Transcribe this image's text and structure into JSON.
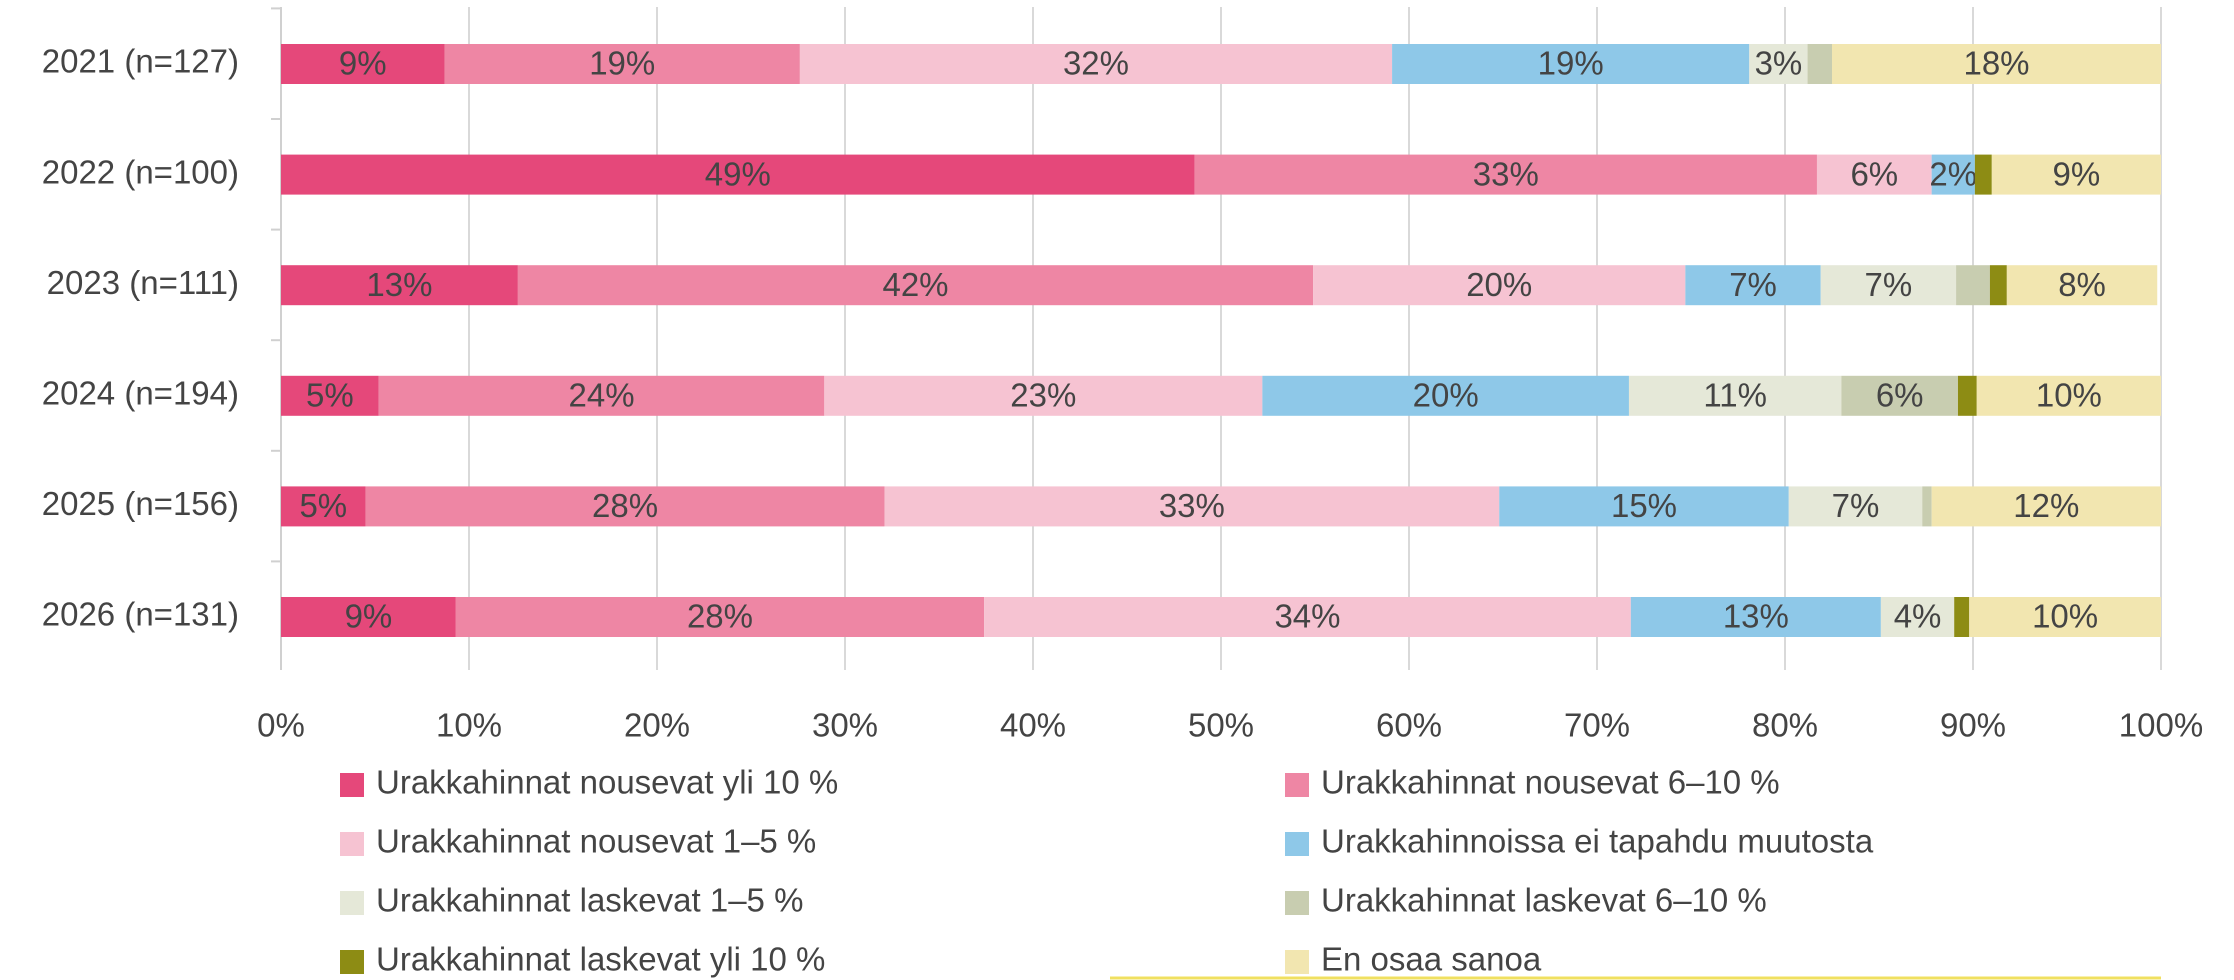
{
  "chart_data": {
    "type": "stacked_barh",
    "categories": [
      "2021 (n=127)",
      "2022 (n=100)",
      "2023 (n=111)",
      "2024 (n=194)",
      "2025 (n=156)",
      "2026 (n=131)"
    ],
    "xlim": [
      0,
      100
    ],
    "xticks": [
      {
        "value": 0,
        "label": "0%"
      },
      {
        "value": 10,
        "label": "10%"
      },
      {
        "value": 20,
        "label": "20%"
      },
      {
        "value": 30,
        "label": "30%"
      },
      {
        "value": 40,
        "label": "40%"
      },
      {
        "value": 50,
        "label": "50%"
      },
      {
        "value": 60,
        "label": "60%"
      },
      {
        "value": 70,
        "label": "70%"
      },
      {
        "value": 80,
        "label": "80%"
      },
      {
        "value": 90,
        "label": "90%"
      },
      {
        "value": 100,
        "label": "100%"
      }
    ],
    "grid": true,
    "series": [
      {
        "name": "Urakkahinnat nousevat yli 10 %",
        "color": "#e5487a",
        "values": [
          8.7,
          48.6,
          12.6,
          5.2,
          4.5,
          9.3
        ],
        "value_labels": [
          "9%",
          "49%",
          "13%",
          "5%",
          "5%",
          "9%"
        ]
      },
      {
        "name": "Urakkahinnat nousevat 6–10 %",
        "color": "#ee86a4",
        "values": [
          18.9,
          33.1,
          42.3,
          23.7,
          27.6,
          28.1
        ],
        "value_labels": [
          "19%",
          "33%",
          "42%",
          "24%",
          "28%",
          "28%"
        ]
      },
      {
        "name": "Urakkahinnat nousevat 1–5 %",
        "color": "#f6c3d2",
        "values": [
          31.5,
          6.1,
          19.8,
          23.3,
          32.7,
          34.4
        ],
        "value_labels": [
          "32%",
          "6%",
          "20%",
          "23%",
          "33%",
          "34%"
        ]
      },
      {
        "name": "Urakkahinnoissa ei tapahdu muutosta",
        "color": "#8ec8e8",
        "values": [
          19.0,
          2.3,
          7.2,
          19.5,
          15.4,
          13.3
        ],
        "value_labels": [
          "19%",
          "2%",
          "7%",
          "20%",
          "15%",
          "13%"
        ]
      },
      {
        "name": "Urakkahinnat laskevat 1–5 %",
        "color": "#e5e8d8",
        "values": [
          3.1,
          0,
          7.2,
          11.3,
          7.1,
          3.9
        ],
        "value_labels": [
          "3%",
          null,
          "7%",
          "11%",
          "7%",
          "4%"
        ]
      },
      {
        "name": "Urakkahinnat laskevat 6–10 %",
        "color": "#c8cdb0",
        "values": [
          1.3,
          0,
          1.8,
          6.2,
          0.5,
          0
        ],
        "value_labels": [
          null,
          null,
          null,
          "6%",
          null,
          null
        ]
      },
      {
        "name": "Urakkahinnat laskevat yli 10 %",
        "color": "#8d8c14",
        "values": [
          0,
          0.9,
          0.9,
          1.0,
          0,
          0.8
        ],
        "value_labels": [
          null,
          null,
          null,
          null,
          null,
          null
        ]
      },
      {
        "name": "En osaa sanoa",
        "color": "#f2e6b0",
        "values": [
          17.5,
          9.0,
          8.0,
          9.8,
          12.2,
          10.2
        ],
        "value_labels": [
          "18%",
          "9%",
          "8%",
          "10%",
          "12%",
          "10%"
        ]
      }
    ]
  }
}
